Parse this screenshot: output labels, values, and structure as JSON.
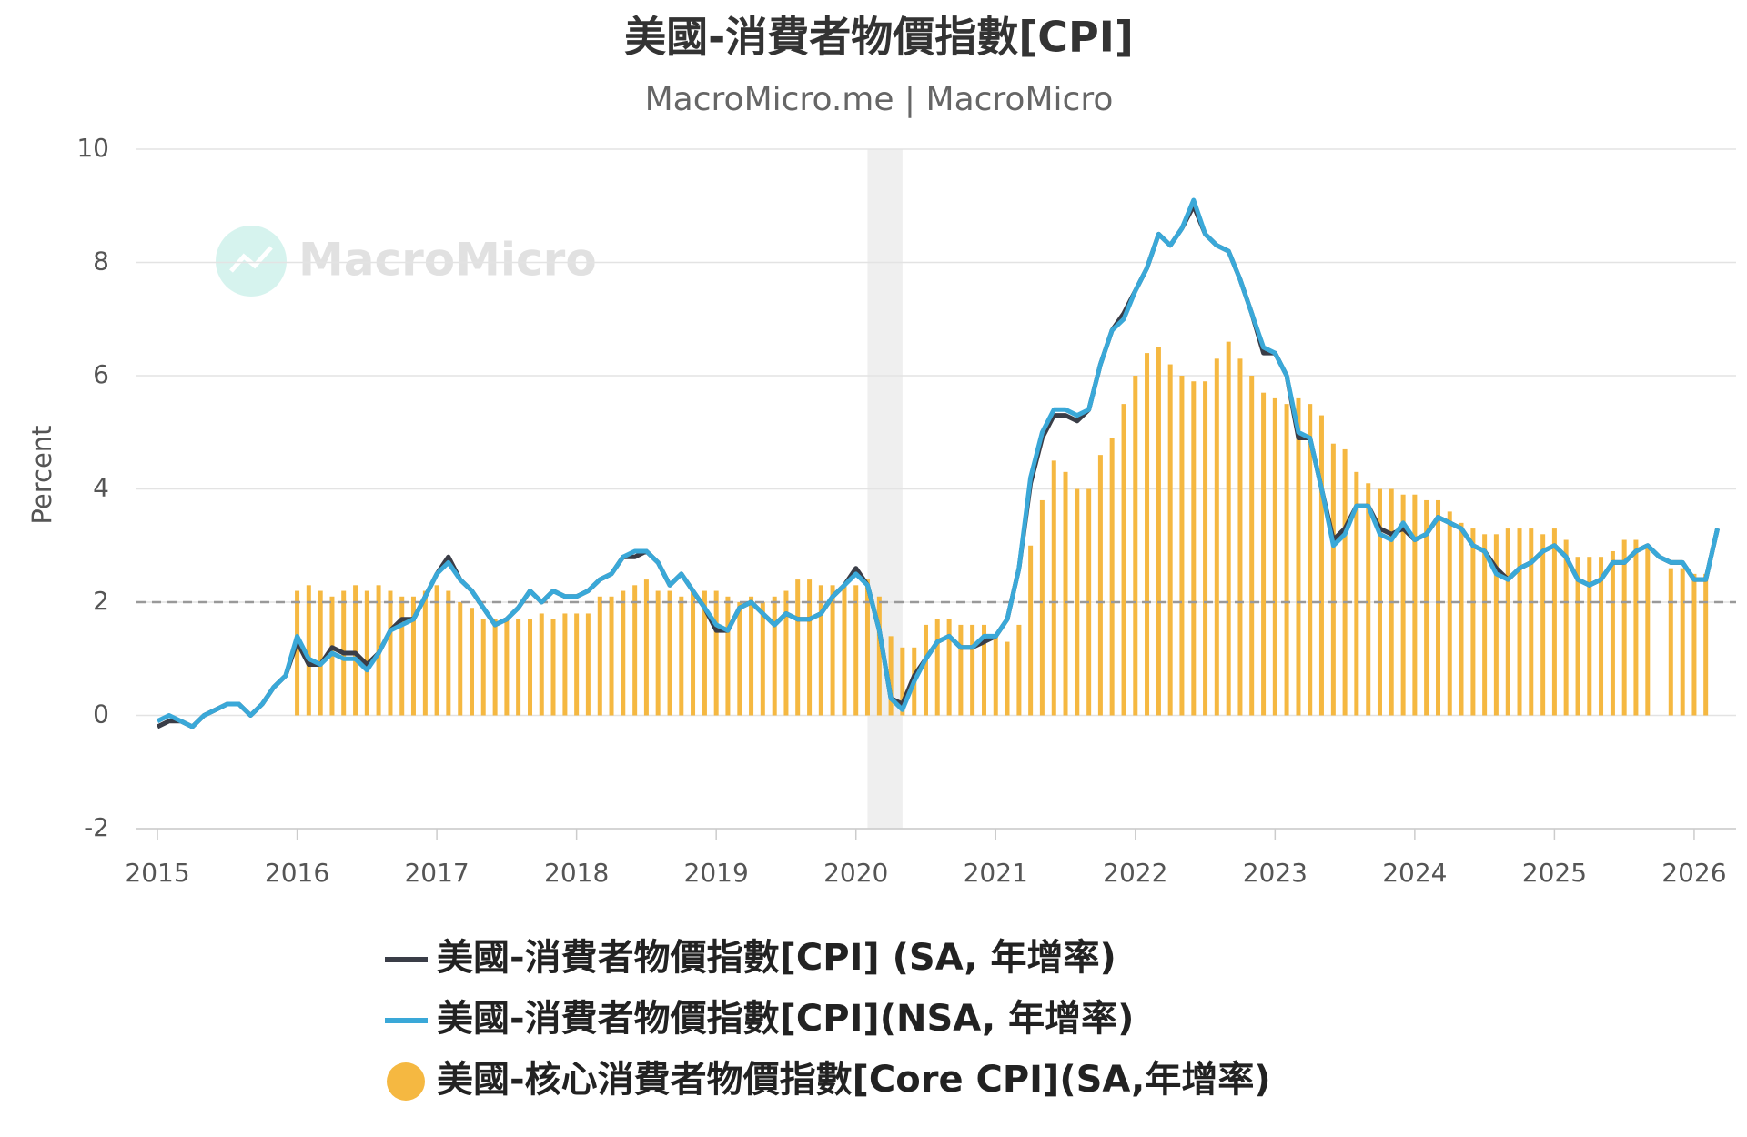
{
  "chart_data": {
    "type": "line-bar",
    "title": "美國-消費者物價指數[CPI]",
    "subtitle": "MacroMicro.me | MacroMicro",
    "watermark": "MacroMicro",
    "y_label": "Percent",
    "xlim": [
      2014.85,
      2026.3
    ],
    "xticks": [
      2015,
      2016,
      2017,
      2018,
      2019,
      2020,
      2021,
      2022,
      2023,
      2024,
      2025,
      2026
    ],
    "ylim": [
      -2,
      10
    ],
    "yticks": [
      -2,
      0,
      2,
      4,
      6,
      8,
      10
    ],
    "grid": true,
    "reference_line": 2,
    "recession": [
      2020.083,
      2020.333
    ],
    "x": [
      2015,
      2015.083,
      2015.167,
      2015.25,
      2015.333,
      2015.417,
      2015.5,
      2015.583,
      2015.667,
      2015.75,
      2015.833,
      2015.917,
      2016,
      2016.083,
      2016.167,
      2016.25,
      2016.333,
      2016.417,
      2016.5,
      2016.583,
      2016.667,
      2016.75,
      2016.833,
      2016.917,
      2017,
      2017.083,
      2017.167,
      2017.25,
      2017.333,
      2017.417,
      2017.5,
      2017.583,
      2017.667,
      2017.75,
      2017.833,
      2017.917,
      2018,
      2018.083,
      2018.167,
      2018.25,
      2018.333,
      2018.417,
      2018.5,
      2018.583,
      2018.667,
      2018.75,
      2018.833,
      2018.917,
      2019,
      2019.083,
      2019.167,
      2019.25,
      2019.333,
      2019.417,
      2019.5,
      2019.583,
      2019.667,
      2019.75,
      2019.833,
      2019.917,
      2020,
      2020.083,
      2020.167,
      2020.25,
      2020.333,
      2020.417,
      2020.5,
      2020.583,
      2020.667,
      2020.75,
      2020.833,
      2020.917,
      2021,
      2021.083,
      2021.167,
      2021.25,
      2021.333,
      2021.417,
      2021.5,
      2021.583,
      2021.667,
      2021.75,
      2021.833,
      2021.917,
      2022,
      2022.083,
      2022.167,
      2022.25,
      2022.333,
      2022.417,
      2022.5,
      2022.583,
      2022.667,
      2022.75,
      2022.833,
      2022.917,
      2023,
      2023.083,
      2023.167,
      2023.25,
      2023.333,
      2023.417,
      2023.5,
      2023.583,
      2023.667,
      2023.75,
      2023.833,
      2023.917,
      2024,
      2024.083,
      2024.167,
      2024.25,
      2024.333,
      2024.417,
      2024.5,
      2024.583,
      2024.667,
      2024.75,
      2024.833,
      2024.917,
      2025,
      2025.083,
      2025.167,
      2025.25,
      2025.333,
      2025.417,
      2025.5,
      2025.583,
      2025.667,
      2025.75,
      2025.833,
      2025.917,
      2026,
      2026.083,
      2026.167
    ],
    "series": [
      {
        "name": "美國-核心消費者物價指數[Core CPI](SA,年增率)",
        "kind": "bar",
        "color": "#f5b841",
        "values": [
          null,
          null,
          null,
          null,
          null,
          null,
          null,
          null,
          null,
          null,
          null,
          null,
          2.2,
          2.3,
          2.2,
          2.1,
          2.2,
          2.3,
          2.2,
          2.3,
          2.2,
          2.1,
          2.1,
          2.2,
          2.3,
          2.2,
          2.0,
          1.9,
          1.7,
          1.7,
          1.7,
          1.7,
          1.7,
          1.8,
          1.7,
          1.8,
          1.8,
          1.8,
          2.1,
          2.1,
          2.2,
          2.3,
          2.4,
          2.2,
          2.2,
          2.1,
          2.2,
          2.2,
          2.2,
          2.1,
          2.0,
          2.1,
          2.0,
          2.1,
          2.2,
          2.4,
          2.4,
          2.3,
          2.3,
          2.3,
          2.3,
          2.4,
          2.1,
          1.4,
          1.2,
          1.2,
          1.6,
          1.7,
          1.7,
          1.6,
          1.6,
          1.6,
          1.4,
          1.3,
          1.6,
          3.0,
          3.8,
          4.5,
          4.3,
          4.0,
          4.0,
          4.6,
          4.9,
          5.5,
          6.0,
          6.4,
          6.5,
          6.2,
          6.0,
          5.9,
          5.9,
          6.3,
          6.6,
          6.3,
          6.0,
          5.7,
          5.6,
          5.5,
          5.6,
          5.5,
          5.3,
          4.8,
          4.7,
          4.3,
          4.1,
          4.0,
          4.0,
          3.9,
          3.9,
          3.8,
          3.8,
          3.6,
          3.4,
          3.3,
          3.2,
          3.2,
          3.3,
          3.3,
          3.3,
          3.2,
          3.3,
          3.1,
          2.8,
          2.8,
          2.8,
          2.9,
          3.1,
          3.1,
          3.0,
          null,
          2.6,
          2.6,
          2.5,
          2.5,
          null
        ]
      },
      {
        "name": "美國-消費者物價指數[CPI] (SA, 年增率)",
        "kind": "line",
        "color": "#3a3d47",
        "values": [
          -0.2,
          -0.1,
          -0.1,
          -0.2,
          0.0,
          0.1,
          0.2,
          0.2,
          0.0,
          0.2,
          0.5,
          0.7,
          1.3,
          0.9,
          0.9,
          1.2,
          1.1,
          1.1,
          0.9,
          1.1,
          1.5,
          1.7,
          1.7,
          2.1,
          2.5,
          2.8,
          2.4,
          2.2,
          1.9,
          1.6,
          1.7,
          1.9,
          2.2,
          2.0,
          2.2,
          2.1,
          2.1,
          2.2,
          2.4,
          2.5,
          2.8,
          2.8,
          2.9,
          2.7,
          2.3,
          2.5,
          2.2,
          1.9,
          1.5,
          1.5,
          1.9,
          2.0,
          1.8,
          1.6,
          1.8,
          1.7,
          1.7,
          1.8,
          2.1,
          2.3,
          2.6,
          2.3,
          1.5,
          0.3,
          0.2,
          0.7,
          1.0,
          1.3,
          1.4,
          1.2,
          1.2,
          1.3,
          1.4,
          1.7,
          2.6,
          4.1,
          4.9,
          5.3,
          5.3,
          5.2,
          5.4,
          6.2,
          6.8,
          7.1,
          7.5,
          7.9,
          8.5,
          8.3,
          8.6,
          9.0,
          8.5,
          8.3,
          8.2,
          7.7,
          7.1,
          6.4,
          6.4,
          6.0,
          4.9,
          4.9,
          4.0,
          3.1,
          3.3,
          3.7,
          3.7,
          3.3,
          3.2,
          3.3,
          3.1,
          3.2,
          3.5,
          3.4,
          3.3,
          3.0,
          2.9,
          2.6,
          2.4,
          2.6,
          2.7,
          2.9,
          3.0,
          2.8,
          2.4,
          2.3,
          2.4,
          2.7,
          2.7,
          2.9,
          3.0,
          2.8,
          2.7,
          2.7,
          2.4,
          2.4,
          3.3
        ]
      },
      {
        "name": "美國-消費者物價指數[CPI](NSA, 年增率)",
        "kind": "line",
        "color": "#3aa8d8",
        "values": [
          -0.1,
          0.0,
          -0.1,
          -0.2,
          0.0,
          0.1,
          0.2,
          0.2,
          0.0,
          0.2,
          0.5,
          0.7,
          1.4,
          1.0,
          0.9,
          1.1,
          1.0,
          1.0,
          0.8,
          1.1,
          1.5,
          1.6,
          1.7,
          2.1,
          2.5,
          2.7,
          2.4,
          2.2,
          1.9,
          1.6,
          1.7,
          1.9,
          2.2,
          2.0,
          2.2,
          2.1,
          2.1,
          2.2,
          2.4,
          2.5,
          2.8,
          2.9,
          2.9,
          2.7,
          2.3,
          2.5,
          2.2,
          1.9,
          1.6,
          1.5,
          1.9,
          2.0,
          1.8,
          1.6,
          1.8,
          1.7,
          1.7,
          1.8,
          2.1,
          2.3,
          2.5,
          2.3,
          1.5,
          0.3,
          0.1,
          0.6,
          1.0,
          1.3,
          1.4,
          1.2,
          1.2,
          1.4,
          1.4,
          1.7,
          2.6,
          4.2,
          5.0,
          5.4,
          5.4,
          5.3,
          5.4,
          6.2,
          6.8,
          7.0,
          7.5,
          7.9,
          8.5,
          8.3,
          8.6,
          9.1,
          8.5,
          8.3,
          8.2,
          7.7,
          7.1,
          6.5,
          6.4,
          6.0,
          5.0,
          4.9,
          4.0,
          3.0,
          3.2,
          3.7,
          3.7,
          3.2,
          3.1,
          3.4,
          3.1,
          3.2,
          3.5,
          3.4,
          3.3,
          3.0,
          2.9,
          2.5,
          2.4,
          2.6,
          2.7,
          2.9,
          3.0,
          2.8,
          2.4,
          2.3,
          2.4,
          2.7,
          2.7,
          2.9,
          3.0,
          2.8,
          2.7,
          2.7,
          2.4,
          2.4,
          3.3
        ]
      }
    ],
    "legend_order": [
      1,
      2,
      0
    ]
  }
}
